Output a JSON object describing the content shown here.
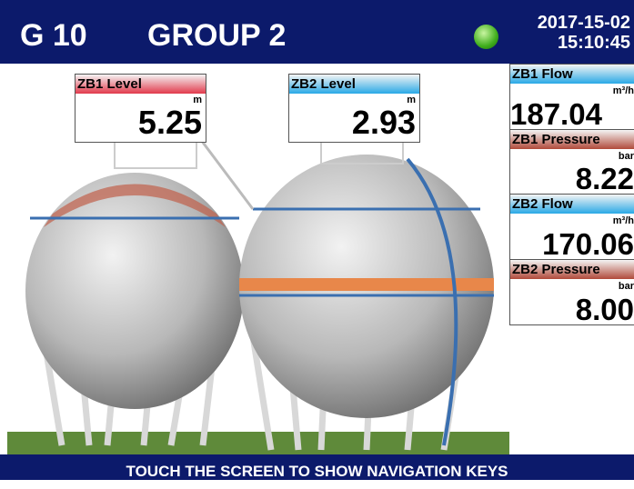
{
  "header": {
    "id": "G 10",
    "group": "GROUP 2",
    "date": "2017-15-02",
    "time": "15:10:45"
  },
  "tanks": [
    {
      "label": "ZB1 Level",
      "unit": "m",
      "value": "5.25"
    },
    {
      "label": "ZB2 Level",
      "unit": "m",
      "value": "2.93"
    }
  ],
  "readings": [
    {
      "label": "ZB1 Flow",
      "unit": "m³/h",
      "value": "187.04"
    },
    {
      "label": "ZB1 Pressure",
      "unit": "bar",
      "value": "8.22"
    },
    {
      "label": "ZB2 Flow",
      "unit": "m³/h",
      "value": "170.06"
    },
    {
      "label": "ZB2 Pressure",
      "unit": "bar",
      "value": "8.00"
    }
  ],
  "footer": "TOUCH THE SCREEN TO SHOW NAVIGATION KEYS"
}
